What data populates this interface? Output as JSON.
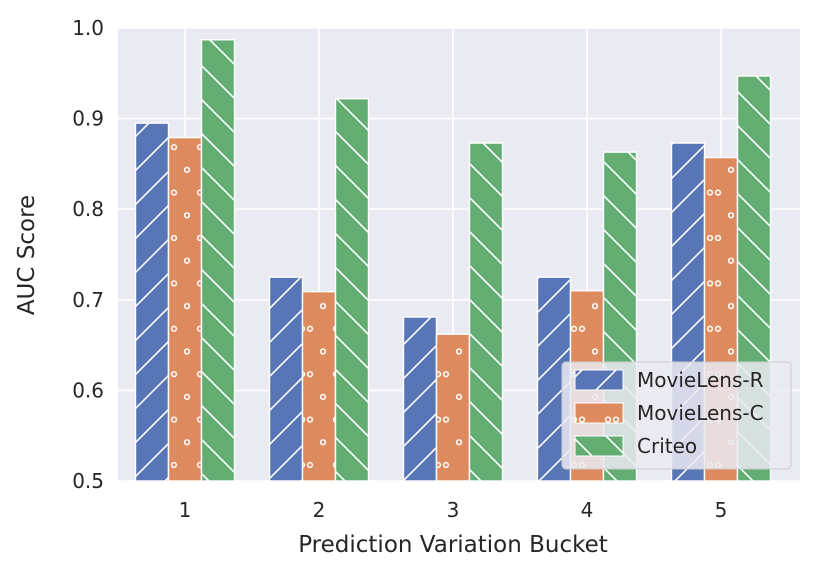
{
  "chart_data": {
    "type": "bar",
    "xlabel": "Prediction Variation Bucket",
    "ylabel": "AUC Score",
    "categories": [
      "1",
      "2",
      "3",
      "4",
      "5"
    ],
    "ylim": [
      0.5,
      1.0
    ],
    "yticks": [
      "0.5",
      "0.6",
      "0.7",
      "0.8",
      "0.9",
      "1.0"
    ],
    "grid": true,
    "legend_position": "lower-right",
    "series": [
      {
        "name": "MovieLens-R",
        "values": [
          0.895,
          0.725,
          0.681,
          0.725,
          0.873
        ],
        "color": "#5875b5",
        "hatch": "diagonal-forward"
      },
      {
        "name": "MovieLens-C",
        "values": [
          0.879,
          0.709,
          0.662,
          0.71,
          0.857
        ],
        "color": "#dd8a5e",
        "hatch": "small-circles"
      },
      {
        "name": "Criteo",
        "values": [
          0.987,
          0.922,
          0.873,
          0.863,
          0.947
        ],
        "color": "#63ad73",
        "hatch": "diagonal-back"
      }
    ]
  }
}
